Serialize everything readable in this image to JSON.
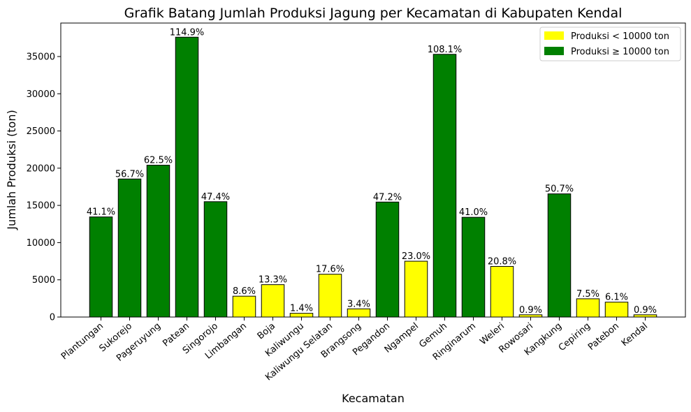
{
  "chart_data": {
    "type": "bar",
    "title": "Grafik Batang Jumlah Produksi Jagung per Kecamatan di Kabupaten Kendal",
    "xlabel": "Kecamatan",
    "ylabel": "Jumlah Produksi (ton)",
    "ylim": [
      0,
      39500
    ],
    "yticks": [
      0,
      5000,
      10000,
      15000,
      20000,
      25000,
      30000,
      35000
    ],
    "grid": false,
    "legend_position": "top-right",
    "threshold": 10000,
    "categories": [
      "Plantungan",
      "Sukorejo",
      "Pageruyung",
      "Patean",
      "Singorojo",
      "Limbangan",
      "Boja",
      "Kaliwungu",
      "Kaliwungu Selatan",
      "Brangsong",
      "Pegandon",
      "Ngampel",
      "Gemuh",
      "Ringinarum",
      "Weleri",
      "Rowosari",
      "Kangkung",
      "Cepiring",
      "Patebon",
      "Kendal"
    ],
    "values": [
      13450,
      18550,
      20400,
      37600,
      15500,
      2800,
      4350,
      500,
      5750,
      1100,
      15450,
      7500,
      35300,
      13400,
      6800,
      300,
      16550,
      2450,
      2000,
      300
    ],
    "data_labels": [
      "41.1%",
      "56.7%",
      "62.5%",
      "114.9%",
      "47.4%",
      "8.6%",
      "13.3%",
      "1.4%",
      "17.6%",
      "3.4%",
      "47.2%",
      "23.0%",
      "108.1%",
      "41.0%",
      "20.8%",
      "0.9%",
      "50.7%",
      "7.5%",
      "6.1%",
      "0.9%"
    ],
    "legend": [
      {
        "label": "Produksi < 10000 ton",
        "color": "#ffff00"
      },
      {
        "label": "Produksi ≥ 10000 ton",
        "color": "#008000"
      }
    ],
    "colors": {
      "low": "#ffff00",
      "high": "#008000",
      "edge": "#000000"
    }
  }
}
